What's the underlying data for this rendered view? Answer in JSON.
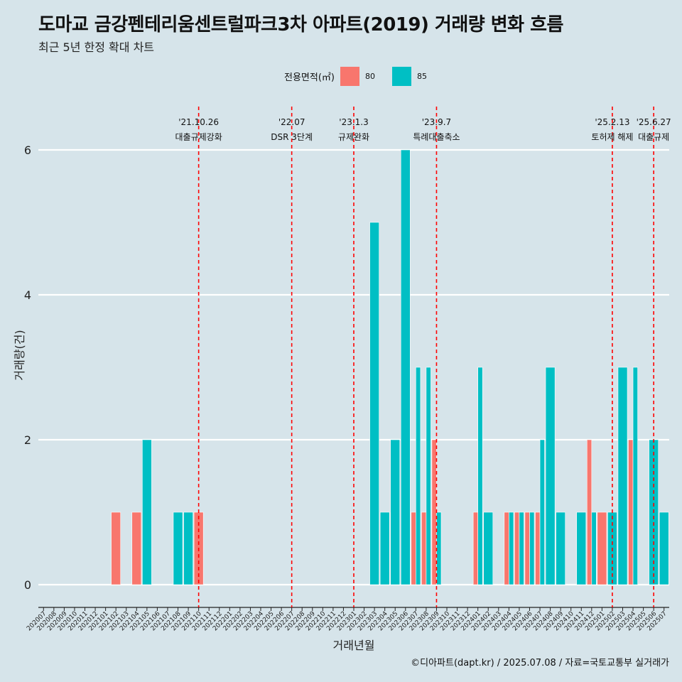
{
  "header": {
    "title": "도마교 금강펜테리움센트럴파크3차 아파트(2019) 거래량 변화 흐름",
    "subtitle": "최근 5년 한정 확대 차트"
  },
  "legend": {
    "title": "전용면적(㎡)",
    "items": [
      {
        "label": "80",
        "color": "#F8766D"
      },
      {
        "label": "85",
        "color": "#00BFC4"
      }
    ]
  },
  "caption": "©디아파트(dapt.kr) / 2025.07.08 / 자료=국토교통부 실거래가",
  "chart_data": {
    "type": "bar",
    "xlabel": "거래년월",
    "ylabel": "거래량(건)",
    "ylim": [
      0,
      6
    ],
    "yticks": [
      0,
      2,
      4,
      6
    ],
    "grid": "horizontal",
    "legend_position": "top",
    "categories": [
      "202007",
      "202008",
      "202009",
      "202010",
      "202011",
      "202012",
      "202101",
      "202102",
      "202103",
      "202104",
      "202105",
      "202106",
      "202107",
      "202108",
      "202109",
      "202110",
      "202111",
      "202112",
      "202201",
      "202202",
      "202203",
      "202204",
      "202205",
      "202206",
      "202207",
      "202208",
      "202209",
      "202210",
      "202211",
      "202212",
      "202301",
      "202302",
      "202303",
      "202304",
      "202305",
      "202306",
      "202307",
      "202308",
      "202309",
      "202310",
      "202311",
      "202312",
      "202401",
      "202402",
      "202403",
      "202404",
      "202405",
      "202406",
      "202407",
      "202408",
      "202409",
      "202410",
      "202411",
      "202412",
      "202501",
      "202502",
      "202503",
      "202504",
      "202505",
      "202506",
      "202507"
    ],
    "series": [
      {
        "name": "80",
        "color": "#F8766D",
        "values": [
          0,
          0,
          0,
          0,
          0,
          0,
          0,
          1,
          0,
          1,
          0,
          0,
          0,
          0,
          0,
          1,
          0,
          0,
          0,
          0,
          0,
          0,
          0,
          0,
          0,
          0,
          0,
          0,
          0,
          0,
          0,
          0,
          0,
          0,
          0,
          0,
          1,
          1,
          2,
          0,
          0,
          0,
          1,
          0,
          0,
          1,
          1,
          1,
          1,
          0,
          0,
          0,
          0,
          2,
          1,
          0,
          0,
          2,
          0,
          0,
          0
        ]
      },
      {
        "name": "85",
        "color": "#00BFC4",
        "values": [
          0,
          0,
          0,
          0,
          0,
          0,
          0,
          0,
          0,
          0,
          2,
          0,
          0,
          1,
          1,
          0,
          0,
          0,
          0,
          0,
          0,
          0,
          0,
          0,
          0,
          0,
          0,
          0,
          0,
          0,
          0,
          0,
          5,
          1,
          2,
          6,
          3,
          3,
          1,
          0,
          0,
          0,
          3,
          1,
          0,
          1,
          1,
          1,
          2,
          3,
          1,
          0,
          1,
          1,
          0,
          1,
          3,
          3,
          0,
          2,
          1
        ]
      }
    ],
    "events": [
      {
        "x": "202110",
        "offset": 0.0,
        "date": "'21.10.26",
        "label": "대출규제강화"
      },
      {
        "x": "202207",
        "offset": 0.0,
        "date": "'22.07",
        "label": "DSR 3단계"
      },
      {
        "x": "202301",
        "offset": 0.0,
        "date": "'23.1.3",
        "label": "규제완화"
      },
      {
        "x": "202309",
        "offset": 0.0,
        "date": "'23.9.7",
        "label": "특례대출축소"
      },
      {
        "x": "202502",
        "offset": 0.0,
        "date": "'25.2.13",
        "label": "토허제 해제"
      },
      {
        "x": "202506",
        "offset": 0.0,
        "date": "'25.6.27",
        "label": "대출규제"
      }
    ]
  }
}
